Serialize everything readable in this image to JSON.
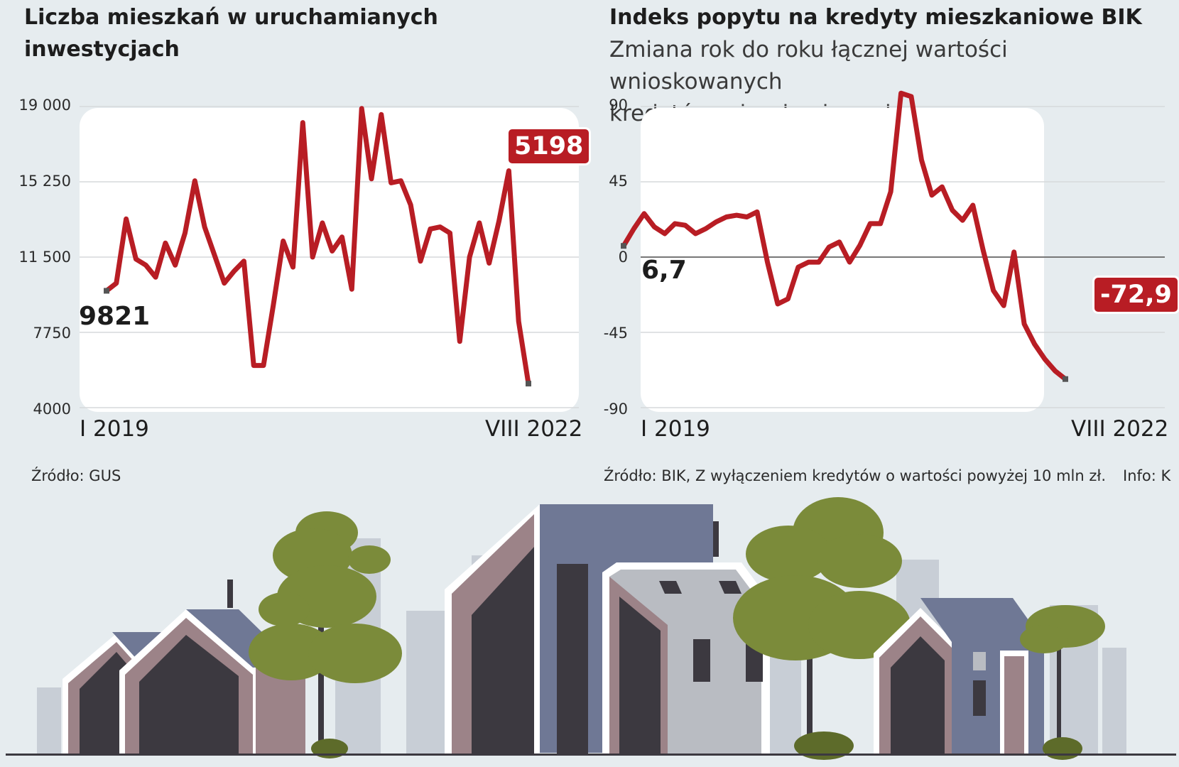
{
  "chart_data": [
    {
      "type": "line",
      "title": "Liczba mieszkań w uruchamianych inwestycjach",
      "title_lines": [
        "Liczba mieszkań w uruchamianych",
        "inwestycjach"
      ],
      "y_ticks": [
        "19 000",
        "15 250",
        "11 500",
        "7750",
        "4000"
      ],
      "y_tick_values": [
        19000,
        15250,
        11500,
        7750,
        4000
      ],
      "ylim": [
        4000,
        19000
      ],
      "x_start_label": "I 2019",
      "x_end_label": "VIII 2022",
      "first_value_label": "9821",
      "last_value_label": "5198",
      "series": [
        {
          "values": [
            9821,
            10200,
            13400,
            11400,
            11100,
            10500,
            12200,
            11100,
            12700,
            15300,
            13000,
            11600,
            10200,
            10800,
            11300,
            6100,
            6100,
            9100,
            12300,
            11000,
            18200,
            11500,
            13200,
            11800,
            12500,
            9900,
            18900,
            15400,
            18600,
            15200,
            15300,
            14100,
            11300,
            12900,
            13000,
            12700,
            7300,
            11500,
            13200,
            11200,
            13300,
            15800,
            8300,
            5198
          ]
        }
      ],
      "grid": true,
      "line_color": "#b81d24",
      "source": "Źródło: GUS"
    },
    {
      "type": "line",
      "title": "Indeks popytu na kredyty mieszkaniowe BIK",
      "subtitle_lines": [
        "Zmiana rok do roku łącznej wartości wnioskowanych",
        "kredytów mieszkaniowych, w proc."
      ],
      "y_ticks": [
        "90",
        "45",
        "0",
        "-45",
        "-90"
      ],
      "y_tick_values": [
        90,
        45,
        0,
        -45,
        -90
      ],
      "ylim": [
        -90,
        90
      ],
      "x_start_label": "I 2019",
      "x_end_label": "VIII 2022",
      "first_value_label": "6,7",
      "last_value_label": "-72,9",
      "series": [
        {
          "values": [
            6.7,
            17,
            26,
            18,
            14,
            20,
            19,
            14,
            17,
            21,
            24,
            25,
            24,
            27,
            -3,
            -28,
            -25,
            -6,
            -3,
            -3,
            6,
            9,
            -3,
            7,
            20,
            20,
            39,
            98,
            96,
            58,
            37,
            42,
            28,
            22,
            31,
            4,
            -20,
            -29,
            3,
            -40,
            -52,
            -61,
            -68,
            -72.9
          ]
        }
      ],
      "grid": true,
      "line_color": "#b81d24",
      "source": "Źródło: BIK, Z wyłączeniem kredytów o wartości powyżej 10 mln zł.",
      "credit": "Info: K"
    }
  ],
  "illustration": {
    "name": "residential-houses-illustration",
    "colors": {
      "roof_blue": "#6f7895",
      "wall_mauve": "#9c8388",
      "wall_dark": "#7a6a6e",
      "glass": "#3c3940",
      "wall_grey": "#b9bcc2",
      "tree": "#7b8b3a",
      "tree_dark": "#5d6b2a",
      "bg_building": "#c8ced6"
    }
  }
}
